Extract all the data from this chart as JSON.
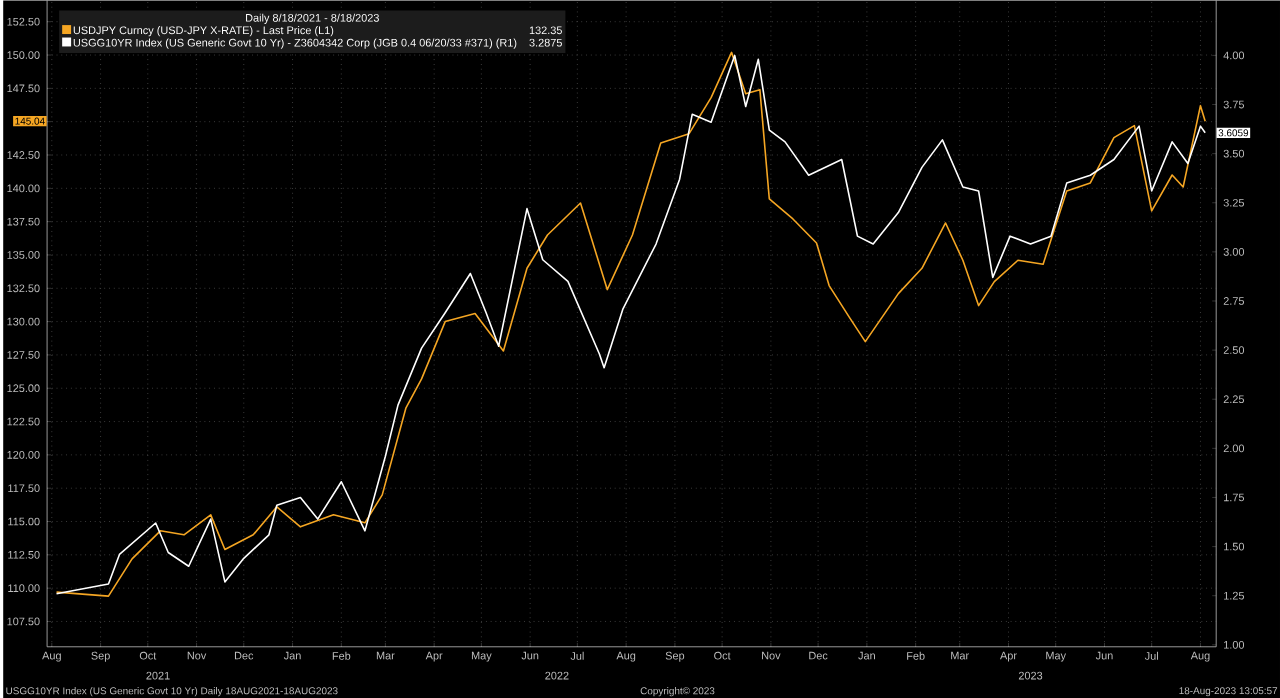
{
  "chart_data": {
    "type": "line",
    "legend_title": "Daily 8/18/2021 - 8/18/2023",
    "legend": "top left",
    "grid": true,
    "xlim": [
      "2021-08-12",
      "2023-08-25"
    ],
    "xticks": [
      {
        "value": "2021-08-15",
        "label": "Aug"
      },
      {
        "value": "2021-09-15",
        "label": "Sep"
      },
      {
        "value": "2021-10-15",
        "label": "Oct"
      },
      {
        "value": "2021-11-15",
        "label": "Nov"
      },
      {
        "value": "2021-12-15",
        "label": "Dec"
      },
      {
        "value": "2022-01-15",
        "label": "Jan"
      },
      {
        "value": "2022-02-15",
        "label": "Feb"
      },
      {
        "value": "2022-03-15",
        "label": "Mar"
      },
      {
        "value": "2022-04-15",
        "label": "Apr"
      },
      {
        "value": "2022-05-15",
        "label": "May"
      },
      {
        "value": "2022-06-15",
        "label": "Jun"
      },
      {
        "value": "2022-07-15",
        "label": "Jul"
      },
      {
        "value": "2022-08-15",
        "label": "Aug"
      },
      {
        "value": "2022-09-15",
        "label": "Sep"
      },
      {
        "value": "2022-10-15",
        "label": "Oct"
      },
      {
        "value": "2022-11-15",
        "label": "Nov"
      },
      {
        "value": "2022-12-15",
        "label": "Dec"
      },
      {
        "value": "2023-01-15",
        "label": "Jan"
      },
      {
        "value": "2023-02-15",
        "label": "Feb"
      },
      {
        "value": "2023-03-15",
        "label": "Mar"
      },
      {
        "value": "2023-04-15",
        "label": "Apr"
      },
      {
        "value": "2023-05-15",
        "label": "May"
      },
      {
        "value": "2023-06-15",
        "label": "Jun"
      },
      {
        "value": "2023-07-15",
        "label": "Jul"
      },
      {
        "value": "2023-08-15",
        "label": "Aug"
      }
    ],
    "ylim": [
      105.6,
      154.1
    ],
    "yticks": [
      {
        "value": 107.5,
        "label": "107.50"
      },
      {
        "value": 110,
        "label": "110.00"
      },
      {
        "value": 112.5,
        "label": "112.50"
      },
      {
        "value": 115,
        "label": "115.00"
      },
      {
        "value": 117.5,
        "label": "117.50"
      },
      {
        "value": 120,
        "label": "120.00"
      },
      {
        "value": 122.5,
        "label": "122.50"
      },
      {
        "value": 125,
        "label": "125.00"
      },
      {
        "value": 127.5,
        "label": "127.50"
      },
      {
        "value": 130,
        "label": "130.00"
      },
      {
        "value": 132.5,
        "label": "132.50"
      },
      {
        "value": 135,
        "label": "135.00"
      },
      {
        "value": 137.5,
        "label": "137.50"
      },
      {
        "value": 140,
        "label": "140.00"
      },
      {
        "value": 142.5,
        "label": "142.50"
      },
      {
        "value": 145,
        "label": null
      },
      {
        "value": 147.5,
        "label": "147.50"
      },
      {
        "value": 150,
        "label": "150.00"
      },
      {
        "value": 152.5,
        "label": "152.50"
      }
    ],
    "y2lim": [
      0.99,
      4.28
    ],
    "y2ticks": [
      {
        "value": 1,
        "label": "1.00"
      },
      {
        "value": 1.25,
        "label": "1.25"
      },
      {
        "value": 1.5,
        "label": "1.50"
      },
      {
        "value": 1.75,
        "label": "1.75"
      },
      {
        "value": 2,
        "label": "2.00"
      },
      {
        "value": 2.25,
        "label": "2.25"
      },
      {
        "value": 2.5,
        "label": "2.50"
      },
      {
        "value": 2.75,
        "label": "2.75"
      },
      {
        "value": 3,
        "label": "3.00"
      },
      {
        "value": 3.25,
        "label": "3.25"
      },
      {
        "value": 3.5,
        "label": "3.50"
      },
      {
        "value": 3.75,
        "label": "3.75"
      },
      {
        "value": 4,
        "label": "4.00"
      }
    ],
    "series": [
      {
        "name": "USDJPY Curncy (USD-JPY X-RATE) - Last Price (L1)",
        "color": "#f5a623",
        "axis": "y",
        "x": [
          "2021-08-18",
          "2021-09-20",
          "2021-10-05",
          "2021-10-23",
          "2021-11-07",
          "2021-11-24",
          "2021-12-03",
          "2021-12-21",
          "2022-01-05",
          "2022-01-20",
          "2022-02-10",
          "2022-03-02",
          "2022-03-13",
          "2022-03-28",
          "2022-04-07",
          "2022-04-22",
          "2022-05-11",
          "2022-05-29",
          "2022-06-13",
          "2022-06-26",
          "2022-07-17",
          "2022-08-03",
          "2022-08-19",
          "2022-09-06",
          "2022-09-24",
          "2022-10-08",
          "2022-10-21",
          "2022-10-30",
          "2022-11-08",
          "2022-11-14",
          "2022-11-29",
          "2022-12-14",
          "2022-12-22",
          "2023-01-04",
          "2023-01-14",
          "2023-02-04",
          "2023-02-19",
          "2023-03-06",
          "2023-03-17",
          "2023-03-27",
          "2023-04-06",
          "2023-04-21",
          "2023-05-07",
          "2023-05-22",
          "2023-06-06",
          "2023-06-21",
          "2023-07-04",
          "2023-07-15",
          "2023-07-28",
          "2023-08-04",
          "2023-08-15",
          "2023-08-18"
        ],
        "values": [
          109.7,
          109.4,
          112.2,
          114.3,
          114.0,
          115.5,
          112.9,
          114.0,
          116.1,
          114.6,
          115.5,
          114.9,
          117.0,
          123.5,
          125.7,
          130.0,
          130.6,
          127.8,
          134.0,
          136.5,
          138.9,
          132.4,
          136.5,
          143.4,
          144.1,
          146.8,
          150.2,
          147.1,
          147.4,
          139.2,
          137.7,
          135.9,
          132.7,
          130.3,
          128.5,
          132.1,
          134.0,
          137.4,
          134.6,
          131.2,
          133.0,
          134.6,
          134.3,
          139.8,
          140.4,
          143.8,
          144.7,
          138.3,
          141.0,
          140.1,
          146.2,
          145.04
        ],
        "value_labels": [
          null,
          null,
          null,
          null,
          null,
          null,
          null,
          null,
          null,
          null,
          null,
          null,
          null,
          null,
          null,
          null,
          null,
          null,
          null,
          null,
          null,
          null,
          null,
          null,
          null,
          null,
          null,
          null,
          null,
          null,
          null,
          null,
          null,
          null,
          null,
          null,
          null,
          null,
          null,
          null,
          null,
          null,
          null,
          null,
          null,
          null,
          null,
          null,
          null,
          null,
          null,
          null
        ]
      },
      {
        "name": "USGG10YR Index (US Generic Govt 10 Yr) - Z3604342 Corp (JGB 0.4 06/20/33 #371) (R1)",
        "color": "#ffffff",
        "axis": "y2",
        "x": [
          "2021-08-18",
          "2021-09-20",
          "2021-09-27",
          "2021-10-20",
          "2021-10-28",
          "2021-11-10",
          "2021-11-24",
          "2021-12-03",
          "2021-12-15",
          "2021-12-31",
          "2022-01-05",
          "2022-01-20",
          "2022-01-31",
          "2022-02-15",
          "2022-03-02",
          "2022-03-15",
          "2022-03-23",
          "2022-04-07",
          "2022-04-22",
          "2022-05-08",
          "2022-05-18",
          "2022-05-26",
          "2022-06-13",
          "2022-06-23",
          "2022-07-09",
          "2022-07-29",
          "2022-08-01",
          "2022-08-13",
          "2022-09-03",
          "2022-09-18",
          "2022-09-26",
          "2022-10-08",
          "2022-10-23",
          "2022-10-30",
          "2022-11-07",
          "2022-11-14",
          "2022-11-24",
          "2022-12-09",
          "2022-12-30",
          "2023-01-09",
          "2023-01-19",
          "2023-02-04",
          "2023-02-19",
          "2023-03-04",
          "2023-03-17",
          "2023-03-27",
          "2023-04-05",
          "2023-04-16",
          "2023-04-29",
          "2023-05-12",
          "2023-05-22",
          "2023-06-06",
          "2023-06-21",
          "2023-07-07",
          "2023-07-15",
          "2023-07-28",
          "2023-08-07",
          "2023-08-15",
          "2023-08-18"
        ],
        "values": [
          1.26,
          1.31,
          1.46,
          1.62,
          1.47,
          1.4,
          1.64,
          1.32,
          1.44,
          1.56,
          1.71,
          1.75,
          1.64,
          1.83,
          1.58,
          1.96,
          2.22,
          2.51,
          2.69,
          2.89,
          2.69,
          2.52,
          3.22,
          2.96,
          2.85,
          2.48,
          2.41,
          2.71,
          3.04,
          3.37,
          3.7,
          3.66,
          4.0,
          3.74,
          3.98,
          3.62,
          3.56,
          3.39,
          3.47,
          3.08,
          3.04,
          3.2,
          3.43,
          3.57,
          3.33,
          3.31,
          2.87,
          3.08,
          3.04,
          3.08,
          3.35,
          3.39,
          3.47,
          3.64,
          3.31,
          3.56,
          3.45,
          3.64,
          3.6059
        ],
        "value_labels": [
          null,
          null,
          null,
          null,
          null,
          null,
          null,
          null,
          null,
          null,
          null,
          null,
          null,
          null,
          null,
          null,
          null,
          null,
          null,
          null,
          null,
          null,
          null,
          null,
          null,
          null,
          null,
          null,
          null,
          null,
          null,
          null,
          null,
          null,
          null,
          null,
          null,
          null,
          null,
          null,
          null,
          null,
          null,
          null,
          null,
          null,
          null,
          null,
          null,
          null,
          null,
          null,
          null,
          null,
          null,
          null,
          null,
          null,
          null
        ]
      }
    ],
    "annotations": [
      "USGG10YR Index (US Generic Govt 10 Yr)  Daily 18AUG2021-18AUG2023",
      "Copyright© 2023",
      "18-Aug-2023 13:05:57",
      "132.35",
      "3.2875",
      "2021",
      "2022",
      "2023",
      "145.04",
      "3.6059"
    ]
  }
}
